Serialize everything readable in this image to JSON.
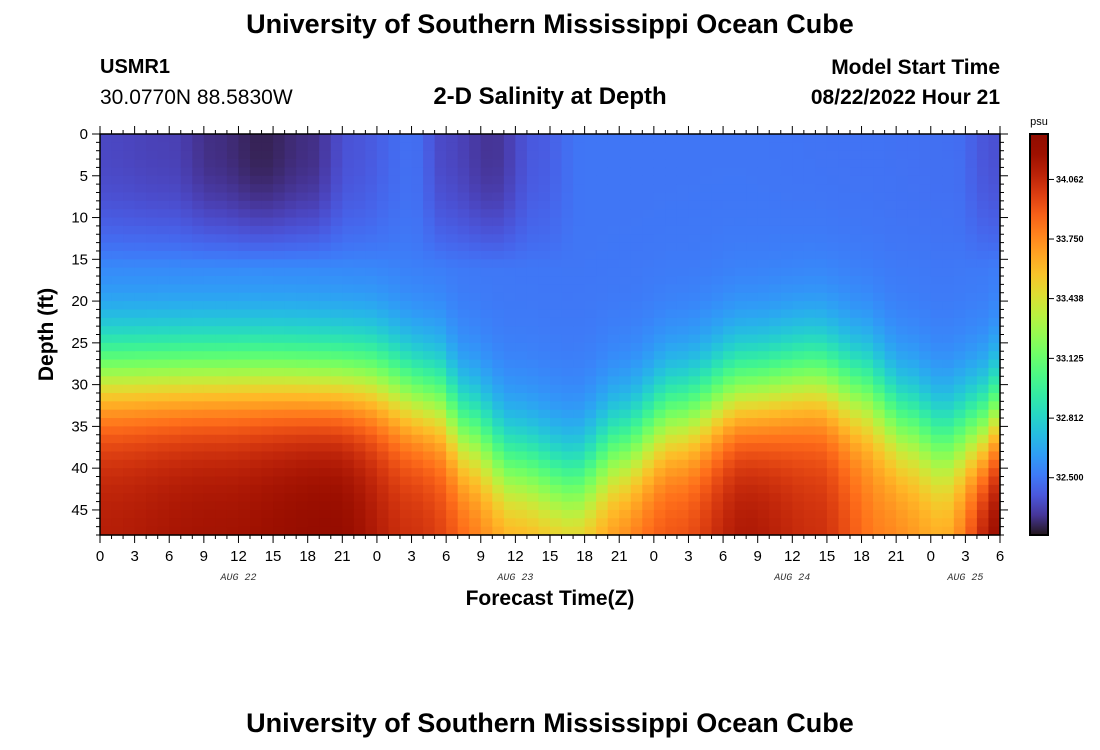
{
  "header": {
    "title": "University of Southern Mississippi Ocean Cube",
    "station_id": "USMR1",
    "station_coords": "30.0770N  88.5830W",
    "chart_title": "2-D Salinity at Depth",
    "model_start_label": "Model Start Time",
    "model_start_value": "08/22/2022 Hour 21"
  },
  "footer": {
    "title": "University of Southern Mississippi Ocean Cube"
  },
  "chart_data": {
    "type": "heatmap",
    "title": "2-D Salinity at Depth",
    "xlabel": "Forecast Time(Z)",
    "ylabel": "Depth (ft)",
    "x_range_hours": [
      0,
      78
    ],
    "y_range_ft": [
      0,
      48
    ],
    "y_inverted": true,
    "x_ticks": [
      "0",
      "3",
      "6",
      "9",
      "12",
      "15",
      "18",
      "21",
      "0",
      "3",
      "6",
      "9",
      "12",
      "15",
      "18",
      "21",
      "0",
      "3",
      "6",
      "9",
      "12",
      "15",
      "18",
      "21",
      "0",
      "3",
      "6"
    ],
    "y_ticks": [
      0,
      5,
      10,
      15,
      20,
      25,
      30,
      35,
      40,
      45
    ],
    "date_labels": [
      {
        "label": "AUG 22",
        "hour": 12
      },
      {
        "label": "AUG 23",
        "hour": 36
      },
      {
        "label": "AUG 24",
        "hour": 60
      },
      {
        "label": "AUG 25",
        "hour": 75
      }
    ],
    "colorbar": {
      "units": "psu",
      "range": [
        32.2,
        34.3
      ],
      "ticks": [
        "34.062",
        "33.750",
        "33.438",
        "33.125",
        "32.812",
        "32.500"
      ],
      "colormap": "turbo"
    },
    "surface_salinity_psu": [
      {
        "hour": 0,
        "value": 32.36
      },
      {
        "hour": 6,
        "value": 32.34
      },
      {
        "hour": 10,
        "value": 32.28
      },
      {
        "hour": 14,
        "value": 32.24
      },
      {
        "hour": 18,
        "value": 32.28
      },
      {
        "hour": 22,
        "value": 32.4
      },
      {
        "hour": 27,
        "value": 32.48
      },
      {
        "hour": 30,
        "value": 32.36
      },
      {
        "hour": 34,
        "value": 32.3
      },
      {
        "hour": 38,
        "value": 32.42
      },
      {
        "hour": 42,
        "value": 32.5
      },
      {
        "hour": 54,
        "value": 32.5
      },
      {
        "hour": 66,
        "value": 32.49
      },
      {
        "hour": 74,
        "value": 32.48
      },
      {
        "hour": 77,
        "value": 32.4
      },
      {
        "hour": 78,
        "value": 32.38
      }
    ],
    "halocline_depth_ft": [
      {
        "hour": 0,
        "value": 29
      },
      {
        "hour": 12,
        "value": 29
      },
      {
        "hour": 23,
        "value": 29.5
      },
      {
        "hour": 29,
        "value": 32
      },
      {
        "hour": 32,
        "value": 36
      },
      {
        "hour": 36,
        "value": 40
      },
      {
        "hour": 41,
        "value": 42
      },
      {
        "hour": 45,
        "value": 38
      },
      {
        "hour": 50,
        "value": 34
      },
      {
        "hour": 56,
        "value": 31
      },
      {
        "hour": 62,
        "value": 29.5
      },
      {
        "hour": 66,
        "value": 31
      },
      {
        "hour": 70,
        "value": 35
      },
      {
        "hour": 73,
        "value": 37
      },
      {
        "hour": 76,
        "value": 36
      },
      {
        "hour": 78,
        "value": 34
      }
    ],
    "bottom_salinity_psu": [
      {
        "hour": 0,
        "value": 34.12
      },
      {
        "hour": 10,
        "value": 34.18
      },
      {
        "hour": 20,
        "value": 34.25
      },
      {
        "hour": 27,
        "value": 34.05
      },
      {
        "hour": 36,
        "value": 33.75
      },
      {
        "hour": 41,
        "value": 33.7
      },
      {
        "hour": 50,
        "value": 33.95
      },
      {
        "hour": 56,
        "value": 34.15
      },
      {
        "hour": 62,
        "value": 34.05
      },
      {
        "hour": 68,
        "value": 33.8
      },
      {
        "hour": 73,
        "value": 33.7
      },
      {
        "hour": 78,
        "value": 34.25
      }
    ]
  }
}
